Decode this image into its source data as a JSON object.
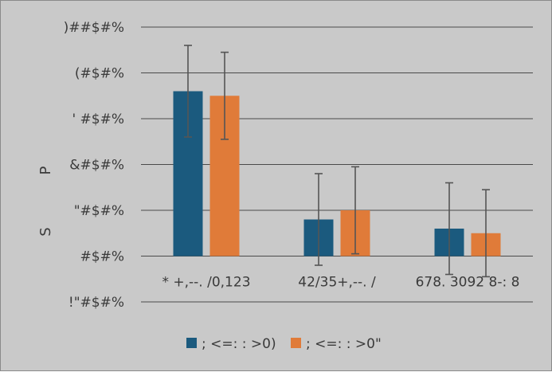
{
  "chart_data": {
    "type": "bar",
    "title": "",
    "xlabel": "",
    "ylabel_chars": [
      "P",
      "S"
    ],
    "categories": [
      "* +,--. /0,123",
      "42/35+,--. /",
      "678. 3092 8-: 8"
    ],
    "series": [
      {
        "name": "; <=: : >0)",
        "color": "#1b5a7e",
        "values": [
          0.36,
          0.08,
          0.06
        ],
        "errors": [
          0.1,
          0.1,
          0.1
        ]
      },
      {
        "name": "; <=: : >0\"",
        "color": "#e07b39",
        "values": [
          0.35,
          0.1,
          0.05
        ],
        "errors": [
          0.095,
          0.095,
          0.095
        ]
      }
    ],
    "ylim": [
      -0.1,
      0.5
    ],
    "yticks": [
      {
        "value": 0.5,
        "label": ")##$#%"
      },
      {
        "value": 0.4,
        "label": "(#$#%"
      },
      {
        "value": 0.3,
        "label": "' #$#%"
      },
      {
        "value": 0.2,
        "label": "&#$#%"
      },
      {
        "value": 0.1,
        "label": "\"#$#%"
      },
      {
        "value": 0.0,
        "label": "#$#%"
      },
      {
        "value": -0.1,
        "label": "!\"#$#%"
      }
    ],
    "grid": true,
    "legend_position": "bottom",
    "colors": {
      "background": "#c9c9c9",
      "grid": "#4a4a4a",
      "error_bar": "#555555"
    }
  }
}
